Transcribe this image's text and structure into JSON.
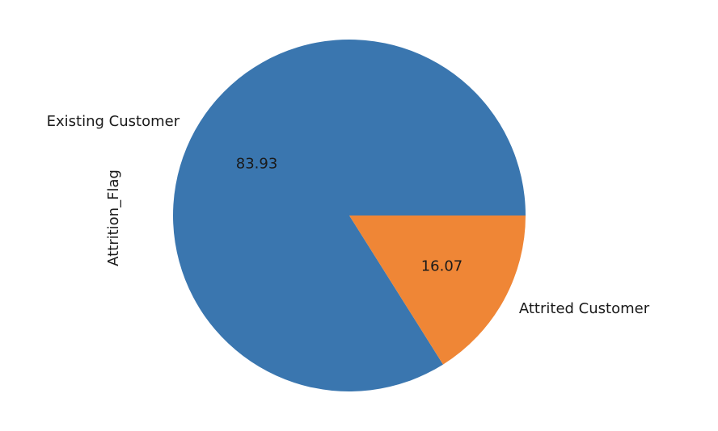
{
  "chart_data": {
    "type": "pie",
    "ylabel": "Attrition_Flag",
    "slices": [
      {
        "label": "Existing Customer",
        "value": 83.93,
        "pct_label": "83.93",
        "color": "#3a76af"
      },
      {
        "label": "Attrited Customer",
        "value": 16.07,
        "pct_label": "16.07",
        "color": "#ef8636"
      }
    ],
    "start_angle_deg": 0,
    "direction": "counterclockwise"
  }
}
